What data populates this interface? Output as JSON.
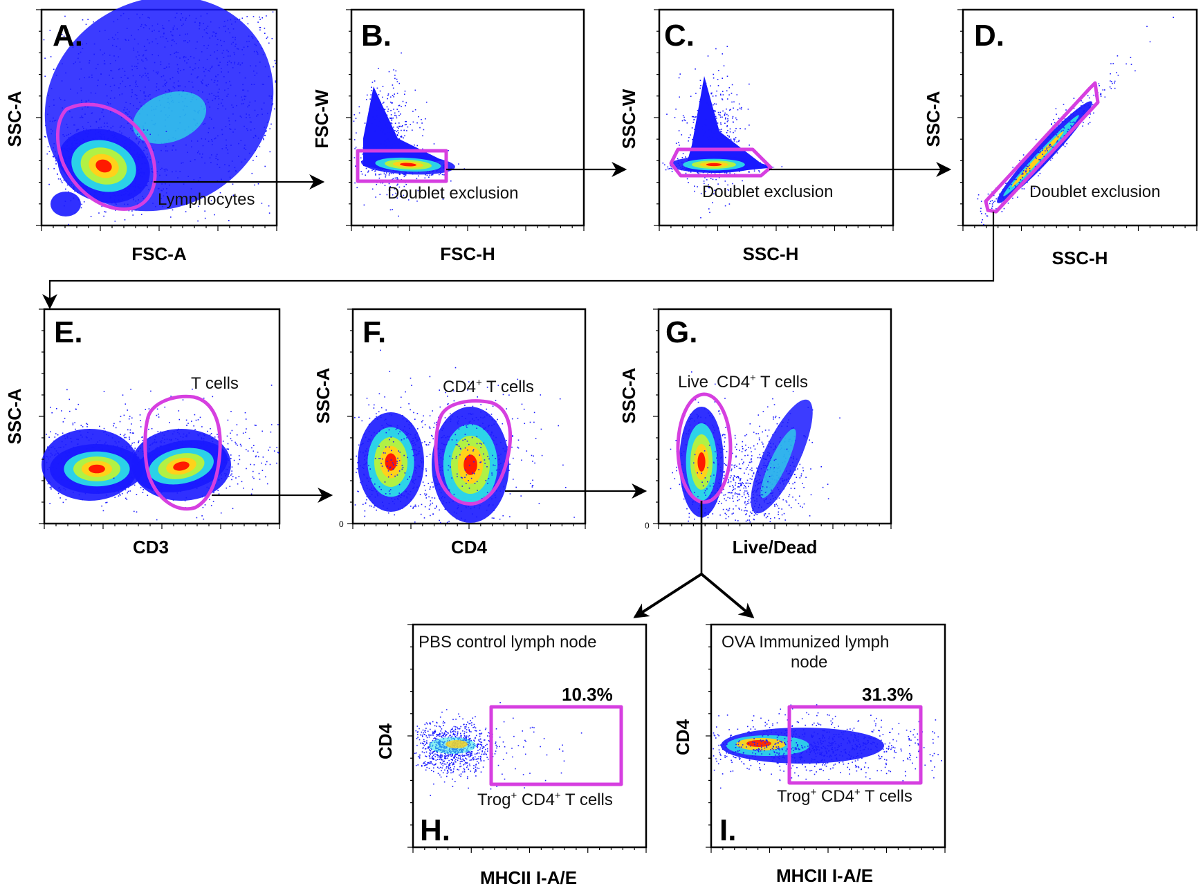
{
  "figure": {
    "panels": [
      {
        "id": "A",
        "letter": "A.",
        "xlabel": "FSC-A",
        "ylabel": "SSC-A",
        "gates": [
          {
            "label": "Lymphocytes"
          }
        ]
      },
      {
        "id": "B",
        "letter": "B.",
        "xlabel": "FSC-H",
        "ylabel": "FSC-W",
        "gates": [
          {
            "label": "Doublet exclusion"
          }
        ]
      },
      {
        "id": "C",
        "letter": "C.",
        "xlabel": "SSC-H",
        "ylabel": "SSC-W",
        "gates": [
          {
            "label": "Doublet exclusion"
          }
        ]
      },
      {
        "id": "D",
        "letter": "D.",
        "xlabel": "SSC-H",
        "ylabel": "SSC-A",
        "gates": [
          {
            "label": "Doublet exclusion"
          }
        ]
      },
      {
        "id": "E",
        "letter": "E.",
        "xlabel": "CD3",
        "ylabel": "SSC-A",
        "gates": [
          {
            "label": "T cells"
          }
        ]
      },
      {
        "id": "F",
        "letter": "F.",
        "xlabel": "CD4",
        "ylabel": "SSC-A",
        "zero_tick": "0",
        "gates": [
          {
            "label": "CD4",
            "sup": "+",
            "label_rest": " T cells"
          }
        ]
      },
      {
        "id": "G",
        "letter": "G.",
        "xlabel": "Live/Dead",
        "ylabel": "SSC-A",
        "zero_tick": "0",
        "gates": [
          {
            "label_prefix": "Live",
            "label": "CD4",
            "sup": "+",
            "label_rest": " T cells"
          }
        ]
      },
      {
        "id": "H",
        "letter": "H.",
        "title": "PBS control lymph node",
        "xlabel": "MHCII I-A/E",
        "ylabel": "CD4",
        "gates": [
          {
            "label": "Trog",
            "sup": "+",
            "label_rest": " CD4",
            "sup2": "+",
            "label_rest2": " T cells",
            "percent": "10.3%"
          }
        ]
      },
      {
        "id": "I",
        "letter": "I.",
        "title_lines": [
          "OVA Immunized lymph",
          "node"
        ],
        "xlabel": "MHCII I-A/E",
        "ylabel": "CD4",
        "gates": [
          {
            "label": "Trog",
            "sup": "+",
            "label_rest": " CD4",
            "sup2": "+",
            "label_rest2": " T cells",
            "percent": "31.3%"
          }
        ]
      }
    ],
    "colors": {
      "gate": "#d63fe0",
      "density_low": "#1a1aff",
      "density_mid": "#2ee6e6",
      "density_midhigh": "#b8f23c",
      "density_high": "#ffd21a",
      "density_peak": "#ff1a00"
    }
  }
}
